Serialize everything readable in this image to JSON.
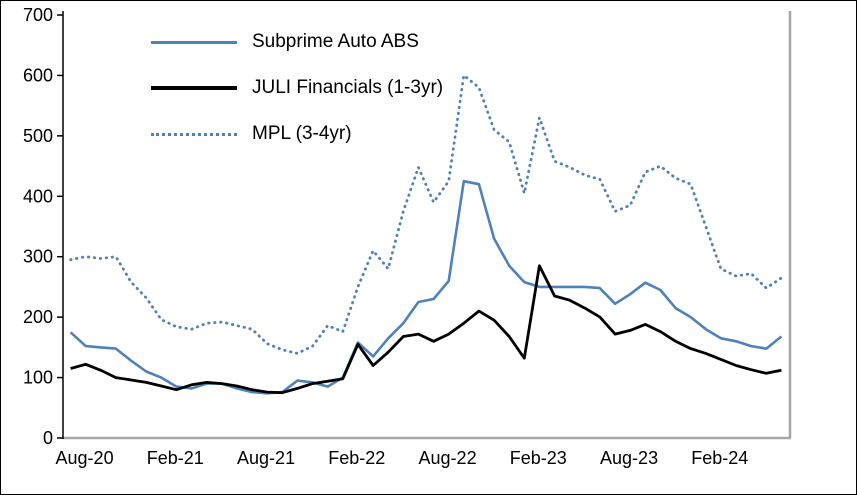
{
  "chart_data": {
    "type": "line",
    "title": "",
    "xlabel": "",
    "ylabel": "",
    "ylim": [
      0,
      700
    ],
    "y_ticks": [
      0,
      100,
      200,
      300,
      400,
      500,
      600,
      700
    ],
    "grid": false,
    "legend_position": "top-left-inside",
    "x_unit": "month",
    "x_start": "Aug-20",
    "x_end": "Jul-24",
    "n_points": 48,
    "x_tick_labels": [
      "Aug-20",
      "Feb-21",
      "Aug-21",
      "Feb-22",
      "Aug-22",
      "Feb-23",
      "Aug-23",
      "Feb-24"
    ],
    "x_tick_positions": [
      0,
      6,
      12,
      18,
      24,
      30,
      36,
      42
    ],
    "series": [
      {
        "name": "Subprime Auto ABS",
        "color": "#4F81BD",
        "style": "solid",
        "values": [
          175,
          152,
          150,
          148,
          128,
          110,
          100,
          85,
          82,
          90,
          90,
          82,
          76,
          74,
          76,
          95,
          92,
          85,
          100,
          158,
          135,
          165,
          190,
          225,
          230,
          260,
          425,
          420,
          330,
          285,
          258,
          250,
          250,
          250,
          250,
          248,
          222,
          238,
          257,
          245,
          215,
          200,
          180,
          165,
          160,
          152,
          148,
          168
        ]
      },
      {
        "name": "JULI Financials (1-3yr)",
        "color": "#000000",
        "style": "solid",
        "values": [
          115,
          122,
          112,
          100,
          96,
          92,
          86,
          80,
          88,
          92,
          90,
          86,
          80,
          76,
          75,
          82,
          90,
          94,
          98,
          155,
          120,
          142,
          168,
          172,
          160,
          172,
          190,
          210,
          195,
          168,
          132,
          285,
          235,
          228,
          215,
          200,
          172,
          178,
          188,
          176,
          160,
          148,
          140,
          130,
          120,
          113,
          107,
          112
        ]
      },
      {
        "name": "MPL (3-4yr)",
        "color": "#4F81BD",
        "style": "dotted",
        "values": [
          295,
          300,
          297,
          300,
          258,
          232,
          196,
          184,
          180,
          190,
          192,
          186,
          180,
          156,
          146,
          140,
          152,
          186,
          176,
          250,
          310,
          280,
          375,
          448,
          390,
          425,
          600,
          580,
          510,
          490,
          405,
          530,
          458,
          448,
          435,
          428,
          375,
          385,
          440,
          450,
          430,
          420,
          350,
          280,
          268,
          272,
          248,
          265
        ]
      }
    ],
    "axis_colors": {
      "left_axis": "#000000",
      "bottom_axis": "#A6A6A6",
      "right_axis": "#A6A6A6"
    }
  }
}
